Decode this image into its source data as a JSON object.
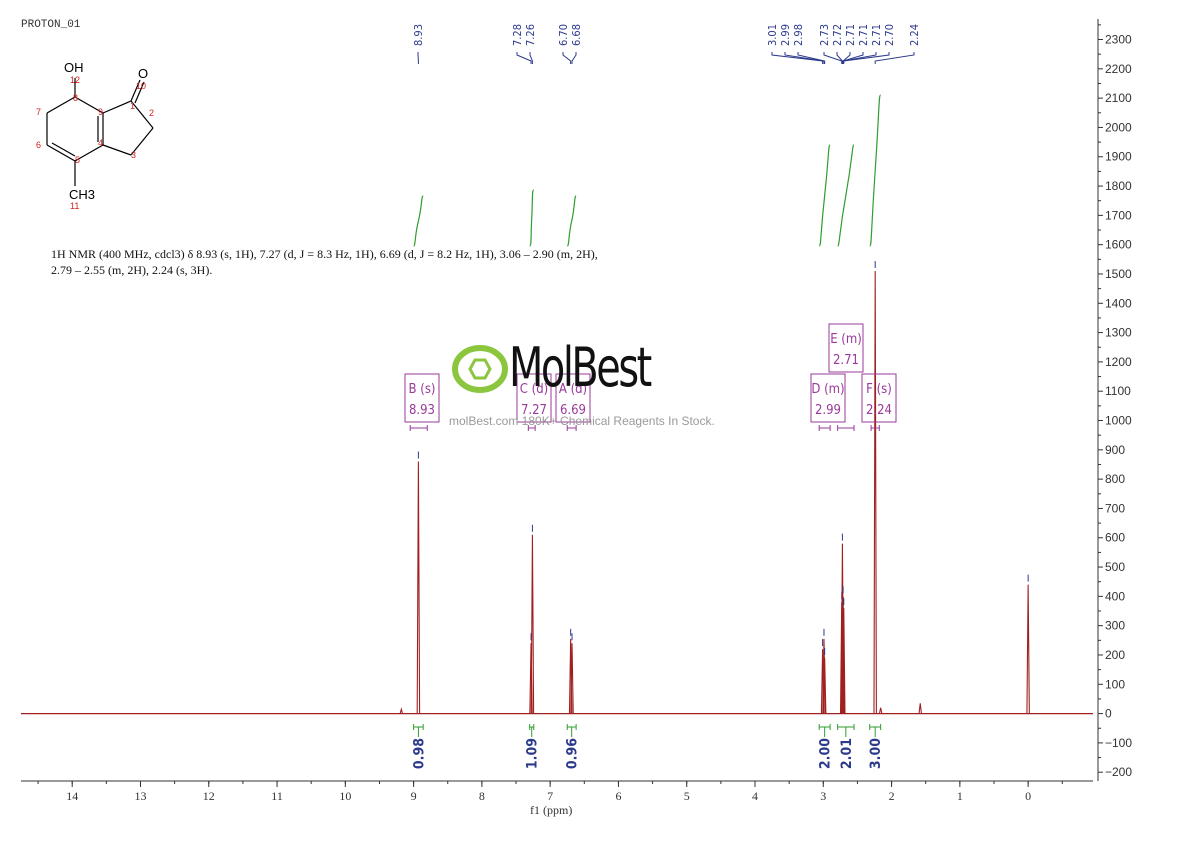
{
  "experiment_title": "PROTON_01",
  "structure": {
    "atoms": {
      "oh": "OH",
      "o": "O",
      "ch3": "CH3"
    },
    "numbers": [
      "12",
      "10",
      "8",
      "1",
      "7",
      "9",
      "2",
      "6",
      "4",
      "3",
      "5",
      "11"
    ]
  },
  "nmr_description": "1H NMR (400 MHz, cdcl3) δ 8.93 (s, 1H), 7.27 (d, J = 8.3 Hz, 1H), 6.69 (d, J = 8.2 Hz, 1H), 3.06 – 2.90 (m, 2H), 2.79 – 2.55 (m, 2H), 2.24 (s, 3H).",
  "watermark": {
    "logo": "MolBest",
    "text": "molBest.com 180K+ Chemical Reagents In Stock."
  },
  "colors": {
    "spectrum": "#a02020",
    "integral": "#2e9e2e",
    "peak_label": "#2c3a8c",
    "multiplet": "#9a3a9a",
    "axis": "#333333"
  },
  "chart_data": {
    "type": "line",
    "title": "",
    "xlabel": "f1 (ppm)",
    "ylabel": "",
    "x_reversed": true,
    "xlim": [
      14.75,
      -0.95
    ],
    "ylim": [
      -230,
      2370
    ],
    "x_ticks": [
      14,
      13,
      12,
      11,
      10,
      9,
      8,
      7,
      6,
      5,
      4,
      3,
      2,
      1,
      0
    ],
    "y_ticks": [
      -200,
      -100,
      0,
      100,
      200,
      300,
      400,
      500,
      600,
      700,
      800,
      900,
      1000,
      1100,
      1200,
      1300,
      1400,
      1500,
      1600,
      1700,
      1800,
      1900,
      2000,
      2100,
      2200,
      2300
    ],
    "series": [
      {
        "peaks": [
          {
            "ppm": 9.18,
            "intensity": 15
          },
          {
            "ppm": 8.93,
            "intensity": 860
          },
          {
            "ppm": 7.28,
            "intensity": 240
          },
          {
            "ppm": 7.26,
            "intensity": 610
          },
          {
            "ppm": 6.7,
            "intensity": 255
          },
          {
            "ppm": 6.68,
            "intensity": 240
          },
          {
            "ppm": 3.01,
            "intensity": 220
          },
          {
            "ppm": 2.99,
            "intensity": 255
          },
          {
            "ppm": 2.98,
            "intensity": 190
          },
          {
            "ppm": 2.73,
            "intensity": 380
          },
          {
            "ppm": 2.72,
            "intensity": 580
          },
          {
            "ppm": 2.71,
            "intensity": 400
          },
          {
            "ppm": 2.7,
            "intensity": 360
          },
          {
            "ppm": 2.24,
            "intensity": 1510
          },
          {
            "ppm": 2.16,
            "intensity": 20
          },
          {
            "ppm": 1.58,
            "intensity": 35
          },
          {
            "ppm": 0.0,
            "intensity": 440
          }
        ]
      }
    ],
    "peak_labels": [
      "8.93",
      "7.28",
      "7.26",
      "6.70",
      "6.68",
      "3.01",
      "2.99",
      "2.98",
      "2.73",
      "2.72",
      "2.71",
      "2.71",
      "2.71",
      "2.70",
      "2.24"
    ],
    "peak_label_ppm": [
      8.93,
      7.28,
      7.26,
      6.7,
      6.68,
      3.01,
      2.99,
      2.98,
      2.73,
      2.72,
      2.71,
      2.71,
      2.71,
      2.7,
      2.24
    ],
    "integrals": [
      {
        "from": 9.0,
        "to": 8.86,
        "value": "0.98"
      },
      {
        "from": 7.3,
        "to": 7.24,
        "value": "1.09"
      },
      {
        "from": 6.75,
        "to": 6.62,
        "value": "0.96"
      },
      {
        "from": 3.06,
        "to": 2.9,
        "value": "2.00"
      },
      {
        "from": 2.79,
        "to": 2.55,
        "value": "2.01"
      },
      {
        "from": 2.32,
        "to": 2.16,
        "value": "3.00"
      }
    ],
    "multiplets": [
      {
        "letter": "B (s)",
        "shift": "8.93",
        "ppm": 8.93,
        "from": 9.05,
        "to": 8.8
      },
      {
        "letter": "C (d)",
        "shift": "7.27",
        "ppm": 7.27,
        "from": 7.32,
        "to": 7.22
      },
      {
        "letter": "A (d)",
        "shift": "6.69",
        "ppm": 6.69,
        "from": 6.75,
        "to": 6.62
      },
      {
        "letter": "D (m)",
        "shift": "2.99",
        "ppm": 2.99,
        "from": 3.06,
        "to": 2.9
      },
      {
        "letter": "E (m)",
        "shift": "2.71",
        "ppm": 2.71,
        "from": 2.79,
        "to": 2.55
      },
      {
        "letter": "F (s)",
        "shift": "2.24",
        "ppm": 2.24,
        "from": 2.3,
        "to": 2.18
      }
    ]
  }
}
